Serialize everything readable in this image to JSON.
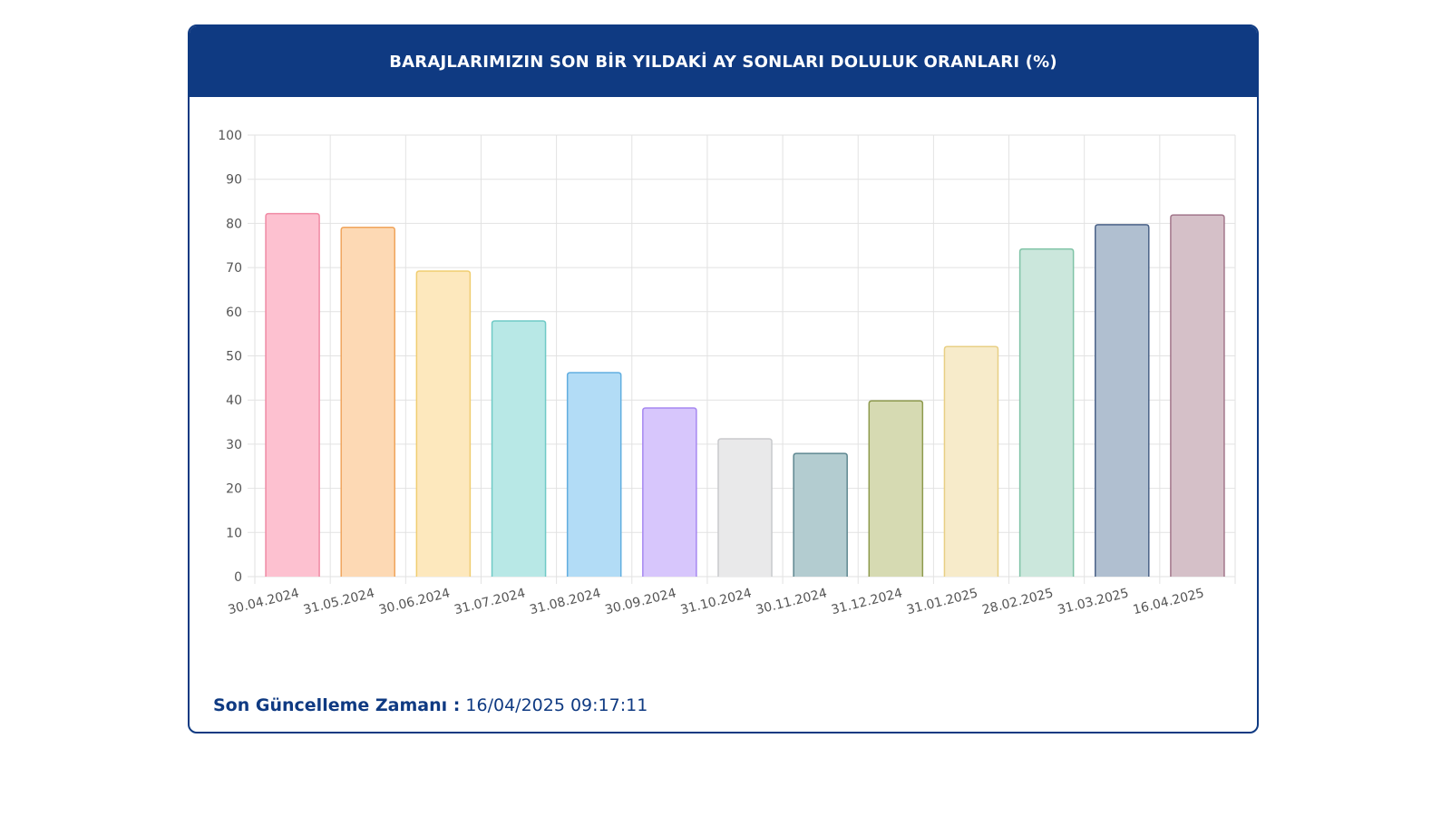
{
  "header": {
    "title": "BARAJLARIMIZIN SON BİR YILDAKİ AY SONLARI DOLULUK ORANLARI (%)"
  },
  "footer": {
    "label": "Son Güncelleme Zamanı :",
    "value": "16/04/2025 09:17:11"
  },
  "chart_data": {
    "type": "bar",
    "title": "BARAJLARIMIZIN SON BİR YILDAKİ AY SONLARI DOLULUK ORANLARI (%)",
    "xlabel": "",
    "ylabel": "",
    "ylim": [
      0,
      100
    ],
    "yticks": [
      0,
      10,
      20,
      30,
      40,
      50,
      60,
      70,
      80,
      90,
      100
    ],
    "grid": true,
    "legend": "none",
    "categories": [
      "30.04.2024",
      "31.05.2024",
      "30.06.2024",
      "31.07.2024",
      "31.08.2024",
      "30.09.2024",
      "31.10.2024",
      "30.11.2024",
      "31.12.2024",
      "31.01.2025",
      "28.02.2025",
      "31.03.2025",
      "16.04.2025"
    ],
    "values": [
      82.2,
      79.1,
      69.2,
      57.9,
      46.2,
      38.2,
      31.2,
      27.9,
      39.8,
      52.1,
      74.2,
      79.7,
      81.9
    ],
    "colors": [
      {
        "fill": "#fdc1d0",
        "stroke": "#f08aa4"
      },
      {
        "fill": "#fdd9b4",
        "stroke": "#f0a55c"
      },
      {
        "fill": "#fde8bd",
        "stroke": "#f0cd70"
      },
      {
        "fill": "#b8e8e6",
        "stroke": "#6fcac6"
      },
      {
        "fill": "#b2dcf6",
        "stroke": "#62aee0"
      },
      {
        "fill": "#d7c6fc",
        "stroke": "#a687f0"
      },
      {
        "fill": "#e9e9ea",
        "stroke": "#c8c9cc"
      },
      {
        "fill": "#b3ccd0",
        "stroke": "#5e8790"
      },
      {
        "fill": "#d6dab2",
        "stroke": "#8e9a4e"
      },
      {
        "fill": "#f7ebca",
        "stroke": "#e8cf84"
      },
      {
        "fill": "#cbe7dc",
        "stroke": "#7fc3a6"
      },
      {
        "fill": "#b0bfd0",
        "stroke": "#4a6288"
      },
      {
        "fill": "#d5c0c8",
        "stroke": "#a2768a"
      }
    ]
  }
}
